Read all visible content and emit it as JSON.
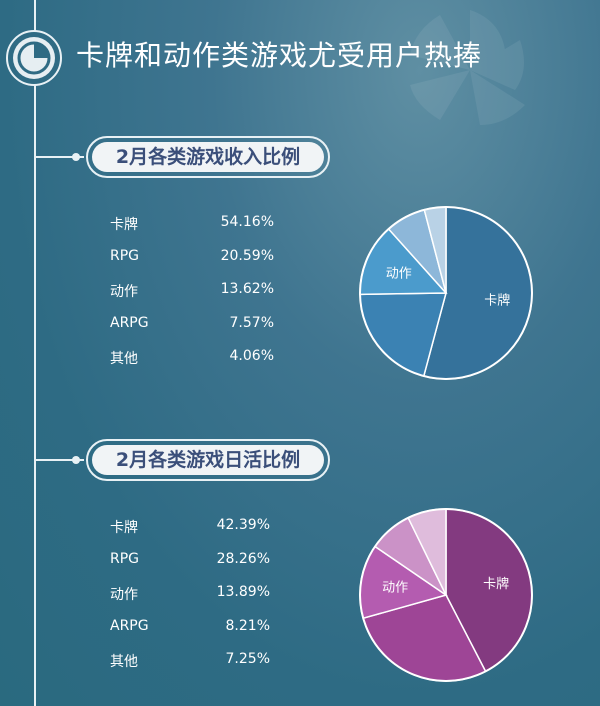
{
  "title": "卡牌和动作类游戏尤受用户热捧",
  "chart_data": [
    {
      "type": "pie",
      "title": "2月各类游戏收入比例",
      "categories": [
        "卡牌",
        "RPG",
        "动作",
        "ARPG",
        "其他"
      ],
      "values": [
        54.16,
        20.59,
        13.62,
        7.57,
        4.06
      ],
      "value_labels": [
        "54.16%",
        "20.59%",
        "13.62%",
        "7.57%",
        "4.06%"
      ],
      "slice_labels": [
        "卡牌",
        "",
        "动作",
        "",
        ""
      ],
      "colors": [
        "#35729b",
        "#3b82b3",
        "#4b9bcc",
        "#8db7d9",
        "#b9d2e6"
      ]
    },
    {
      "type": "pie",
      "title": "2月各类游戏日活比例",
      "categories": [
        "卡牌",
        "RPG",
        "动作",
        "ARPG",
        "其他"
      ],
      "values": [
        42.39,
        28.26,
        13.89,
        8.21,
        7.25
      ],
      "value_labels": [
        "42.39%",
        "28.26%",
        "13.89%",
        "8.21%",
        "7.25%"
      ],
      "slice_labels": [
        "卡牌",
        "",
        "动作",
        "",
        ""
      ],
      "colors": [
        "#833a80",
        "#9e4596",
        "#b45cb0",
        "#cb92c7",
        "#dfbcdc"
      ]
    }
  ]
}
